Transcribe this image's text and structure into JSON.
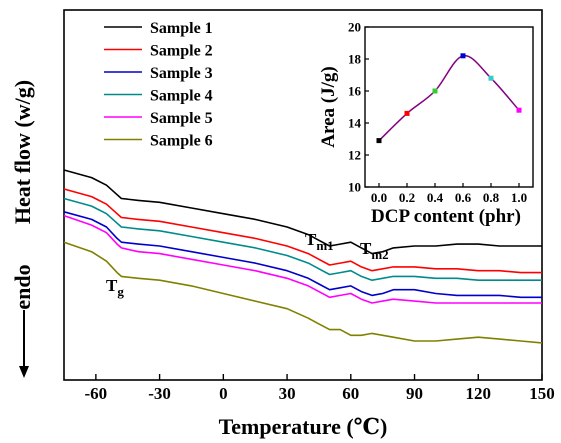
{
  "chart_data": [
    {
      "type": "line",
      "xlabel": "Temperature (℃)",
      "ylabel_main": "Heat flow (w/g)",
      "ylabel_endo": "endo",
      "xlim": [
        -75,
        150
      ],
      "xticks": [
        -60,
        -30,
        0,
        30,
        60,
        90,
        120,
        150
      ],
      "yticks": [],
      "grid": false,
      "legend_position": "top-left",
      "annotations": [
        {
          "main": "T",
          "sub": "g"
        },
        {
          "main": "T",
          "sub": "m1"
        },
        {
          "main": "T",
          "sub": "m2"
        }
      ],
      "series": [
        {
          "name": "Sample 1",
          "color": "#000000",
          "x": [
            -75,
            -62,
            -55,
            -50,
            -48,
            -40,
            -30,
            -15,
            0,
            15,
            30,
            40,
            45,
            50,
            55,
            60,
            65,
            70,
            75,
            80,
            90,
            100,
            110,
            120,
            130,
            140,
            150
          ],
          "y": [
            1.0,
            0.96,
            0.92,
            0.87,
            0.85,
            0.84,
            0.83,
            0.8,
            0.77,
            0.74,
            0.7,
            0.66,
            0.63,
            0.6,
            0.61,
            0.62,
            0.59,
            0.56,
            0.57,
            0.59,
            0.6,
            0.6,
            0.61,
            0.61,
            0.6,
            0.6,
            0.6
          ]
        },
        {
          "name": "Sample 2",
          "color": "#ff0000",
          "x": [
            -75,
            -62,
            -55,
            -50,
            -48,
            -40,
            -30,
            -15,
            0,
            15,
            30,
            40,
            45,
            50,
            55,
            60,
            65,
            70,
            75,
            80,
            90,
            100,
            110,
            120,
            130,
            140,
            150
          ],
          "y": [
            0.9,
            0.86,
            0.82,
            0.77,
            0.75,
            0.74,
            0.73,
            0.7,
            0.67,
            0.64,
            0.6,
            0.56,
            0.53,
            0.5,
            0.51,
            0.52,
            0.49,
            0.47,
            0.48,
            0.49,
            0.49,
            0.48,
            0.48,
            0.47,
            0.47,
            0.46,
            0.46
          ]
        },
        {
          "name": "Sample 3",
          "color": "#0000cc",
          "x": [
            -75,
            -62,
            -55,
            -50,
            -48,
            -40,
            -30,
            -15,
            0,
            15,
            30,
            40,
            45,
            50,
            55,
            60,
            65,
            70,
            75,
            80,
            90,
            100,
            110,
            120,
            130,
            140,
            150
          ],
          "y": [
            0.78,
            0.74,
            0.7,
            0.64,
            0.62,
            0.61,
            0.6,
            0.57,
            0.54,
            0.51,
            0.47,
            0.43,
            0.4,
            0.37,
            0.38,
            0.39,
            0.36,
            0.34,
            0.35,
            0.37,
            0.37,
            0.35,
            0.34,
            0.34,
            0.34,
            0.33,
            0.33
          ]
        },
        {
          "name": "Sample 4",
          "color": "#008b8b",
          "x": [
            -75,
            -62,
            -55,
            -50,
            -48,
            -40,
            -30,
            -15,
            0,
            15,
            30,
            40,
            45,
            50,
            55,
            60,
            65,
            70,
            75,
            80,
            90,
            100,
            110,
            120,
            130,
            140,
            150
          ],
          "y": [
            0.85,
            0.81,
            0.77,
            0.72,
            0.7,
            0.69,
            0.68,
            0.65,
            0.62,
            0.59,
            0.55,
            0.51,
            0.48,
            0.45,
            0.46,
            0.47,
            0.44,
            0.42,
            0.43,
            0.44,
            0.44,
            0.43,
            0.43,
            0.42,
            0.42,
            0.42,
            0.42
          ]
        },
        {
          "name": "Sample 5",
          "color": "#ff00ff",
          "x": [
            -75,
            -62,
            -55,
            -50,
            -48,
            -40,
            -30,
            -15,
            0,
            15,
            30,
            40,
            45,
            50,
            55,
            60,
            65,
            70,
            75,
            80,
            90,
            100,
            110,
            120,
            130,
            140,
            150
          ],
          "y": [
            0.76,
            0.71,
            0.67,
            0.61,
            0.59,
            0.57,
            0.56,
            0.53,
            0.5,
            0.47,
            0.43,
            0.39,
            0.36,
            0.33,
            0.34,
            0.35,
            0.32,
            0.3,
            0.31,
            0.32,
            0.31,
            0.3,
            0.3,
            0.3,
            0.3,
            0.3,
            0.3
          ]
        },
        {
          "name": "Sample 6",
          "color": "#808000",
          "x": [
            -75,
            -62,
            -55,
            -50,
            -48,
            -40,
            -30,
            -15,
            0,
            15,
            30,
            40,
            45,
            50,
            55,
            60,
            65,
            70,
            75,
            80,
            90,
            100,
            110,
            120,
            130,
            140,
            150
          ],
          "y": [
            0.62,
            0.57,
            0.52,
            0.46,
            0.44,
            0.43,
            0.42,
            0.39,
            0.35,
            0.31,
            0.27,
            0.22,
            0.19,
            0.16,
            0.16,
            0.13,
            0.13,
            0.14,
            0.13,
            0.12,
            0.1,
            0.1,
            0.11,
            0.12,
            0.11,
            0.1,
            0.09
          ]
        }
      ]
    },
    {
      "type": "line",
      "xlabel": "DCP content (phr)",
      "ylabel": "Area (J/g)",
      "xlim": [
        -0.1,
        1.1
      ],
      "ylim": [
        10,
        20
      ],
      "xticks": [
        "0.0",
        "0.2",
        "0.4",
        "0.6",
        "0.8",
        "1.0"
      ],
      "yticks": [
        "10",
        "12",
        "14",
        "16",
        "18",
        "20"
      ],
      "x": [
        0.0,
        0.2,
        0.4,
        0.6,
        0.8,
        1.0
      ],
      "y": [
        12.9,
        14.6,
        16.0,
        18.2,
        16.8,
        14.8
      ],
      "line_color": "#800080",
      "marker_colors": [
        "#000000",
        "#ff0000",
        "#33cc33",
        "#0000cc",
        "#33cccc",
        "#ff00ff"
      ]
    }
  ]
}
